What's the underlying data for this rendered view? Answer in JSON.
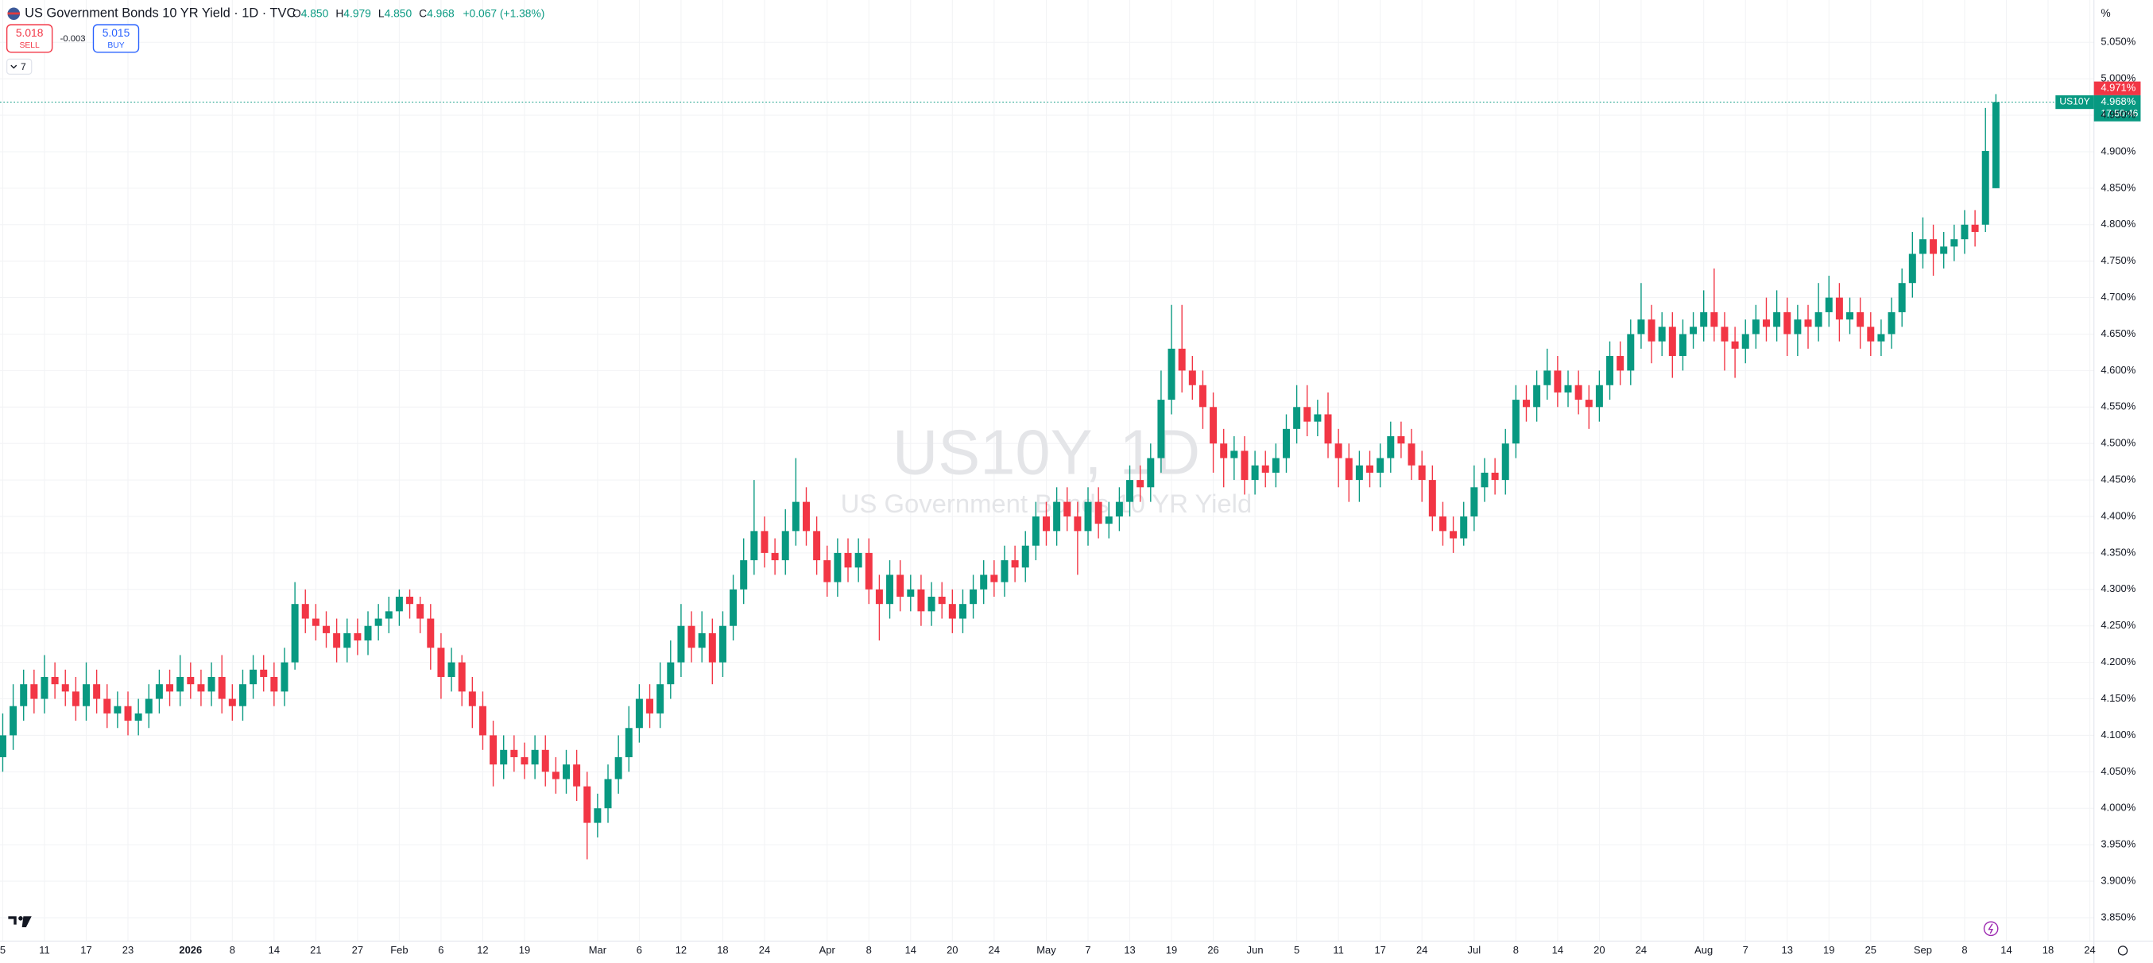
{
  "header": {
    "symbol_title": "US Government Bonds 10 YR Yield · 1D · TVC",
    "ohlc": [
      {
        "label": "O",
        "value": "4.850"
      },
      {
        "label": "H",
        "value": "4.979"
      },
      {
        "label": "L",
        "value": "4.850"
      },
      {
        "label": "C",
        "value": "4.968"
      }
    ],
    "change": "+0.067 (+1.38%)",
    "sell_price": "5.018",
    "sell_label": "SELL",
    "spread": "-0.003",
    "buy_price": "5.015",
    "buy_label": "BUY",
    "indicators_count": "7"
  },
  "chart_data": {
    "type": "candlestick",
    "watermark_symbol": "US10Y, 1D",
    "watermark_name": "US Government Bonds 10 YR Yield",
    "y_unit": "%",
    "price_tag": {
      "symbol": "US10Y",
      "ask": "4.971%",
      "last": "4.968%",
      "countdown": "17:50:46"
    },
    "up_color": "#089981",
    "down_color": "#f23645",
    "grid": true,
    "ylim": [
      3.818,
      5.108
    ],
    "yticks": [
      {
        "value": 3.85,
        "label": "3.850%"
      },
      {
        "value": 3.9,
        "label": "3.900%"
      },
      {
        "value": 3.95,
        "label": "3.950%"
      },
      {
        "value": 4.0,
        "label": "4.000%"
      },
      {
        "value": 4.05,
        "label": "4.050%"
      },
      {
        "value": 4.1,
        "label": "4.100%"
      },
      {
        "value": 4.15,
        "label": "4.150%"
      },
      {
        "value": 4.2,
        "label": "4.200%"
      },
      {
        "value": 4.25,
        "label": "4.250%"
      },
      {
        "value": 4.3,
        "label": "4.300%"
      },
      {
        "value": 4.35,
        "label": "4.350%"
      },
      {
        "value": 4.4,
        "label": "4.400%"
      },
      {
        "value": 4.45,
        "label": "4.450%"
      },
      {
        "value": 4.5,
        "label": "4.500%"
      },
      {
        "value": 4.55,
        "label": "4.550%"
      },
      {
        "value": 4.6,
        "label": "4.600%"
      },
      {
        "value": 4.65,
        "label": "4.650%"
      },
      {
        "value": 4.7,
        "label": "4.700%"
      },
      {
        "value": 4.75,
        "label": "4.750%"
      },
      {
        "value": 4.8,
        "label": "4.800%"
      },
      {
        "value": 4.85,
        "label": "4.850%"
      },
      {
        "value": 4.9,
        "label": "4.900%"
      },
      {
        "value": 4.95,
        "label": "4.950%"
      },
      {
        "value": 5.0,
        "label": "5.000%"
      },
      {
        "value": 5.05,
        "label": "5.050%"
      }
    ],
    "categories": [
      "5",
      null,
      null,
      null,
      "11",
      null,
      null,
      null,
      "17",
      null,
      null,
      null,
      "23",
      null,
      null,
      null,
      null,
      null,
      "2026",
      null,
      null,
      null,
      "8",
      null,
      null,
      null,
      "14",
      null,
      null,
      null,
      "21",
      null,
      null,
      null,
      "27",
      null,
      null,
      null,
      "Feb",
      null,
      null,
      null,
      "6",
      null,
      null,
      null,
      "12",
      null,
      null,
      null,
      "19",
      null,
      null,
      null,
      null,
      null,
      null,
      "Mar",
      null,
      null,
      null,
      "6",
      null,
      null,
      null,
      "12",
      null,
      null,
      null,
      "18",
      null,
      null,
      null,
      "24",
      null,
      null,
      null,
      null,
      null,
      "Apr",
      null,
      null,
      null,
      "8",
      null,
      null,
      null,
      "14",
      null,
      null,
      null,
      "20",
      null,
      null,
      null,
      "24",
      null,
      null,
      null,
      null,
      "May",
      null,
      null,
      null,
      "7",
      null,
      null,
      null,
      "13",
      null,
      null,
      null,
      "19",
      null,
      null,
      null,
      "26",
      null,
      null,
      null,
      "Jun",
      null,
      null,
      null,
      "5",
      null,
      null,
      null,
      "11",
      null,
      null,
      null,
      "17",
      null,
      null,
      null,
      "24",
      null,
      null,
      null,
      null,
      "Jul",
      null,
      null,
      null,
      "8",
      null,
      null,
      null,
      "14",
      null,
      null,
      null,
      "20",
      null,
      null,
      null,
      "24",
      null,
      null,
      null,
      null,
      null,
      "Aug",
      null,
      null,
      null,
      "7",
      null,
      null,
      null,
      "13",
      null,
      null,
      null,
      "19",
      null,
      null,
      null,
      "25",
      null,
      null,
      null,
      null,
      "Sep",
      null,
      null,
      null,
      "8",
      null,
      null,
      null,
      "14",
      null,
      null,
      null,
      "18",
      null,
      null,
      null,
      "24"
    ],
    "open": [
      4.07,
      4.1,
      4.14,
      4.17,
      4.15,
      4.18,
      4.17,
      4.16,
      4.14,
      4.17,
      4.15,
      4.13,
      4.14,
      4.12,
      4.13,
      4.15,
      4.17,
      4.16,
      4.18,
      4.17,
      4.16,
      4.18,
      4.15,
      4.14,
      4.17,
      4.19,
      4.18,
      4.16,
      4.2,
      4.28,
      4.26,
      4.25,
      4.24,
      4.22,
      4.24,
      4.23,
      4.25,
      4.26,
      4.27,
      4.29,
      4.28,
      4.26,
      4.22,
      4.18,
      4.2,
      4.16,
      4.14,
      4.1,
      4.06,
      4.08,
      4.07,
      4.06,
      4.08,
      4.05,
      4.04,
      4.06,
      4.03,
      3.98,
      4.0,
      4.04,
      4.07,
      4.11,
      4.15,
      4.13,
      4.17,
      4.2,
      4.25,
      4.22,
      4.24,
      4.2,
      4.25,
      4.3,
      4.34,
      4.38,
      4.35,
      4.34,
      4.38,
      4.42,
      4.38,
      4.34,
      4.31,
      4.35,
      4.33,
      4.35,
      4.3,
      4.28,
      4.32,
      4.29,
      4.3,
      4.27,
      4.29,
      4.28,
      4.26,
      4.28,
      4.3,
      4.32,
      4.31,
      4.34,
      4.33,
      4.36,
      4.4,
      4.38,
      4.42,
      4.4,
      4.38,
      4.42,
      4.39,
      4.4,
      4.42,
      4.45,
      4.44,
      4.48,
      4.56,
      4.63,
      4.6,
      4.58,
      4.55,
      4.5,
      4.48,
      4.49,
      4.45,
      4.47,
      4.46,
      4.48,
      4.52,
      4.55,
      4.53,
      4.54,
      4.5,
      4.48,
      4.45,
      4.47,
      4.46,
      4.48,
      4.51,
      4.5,
      4.47,
      4.45,
      4.4,
      4.38,
      4.37,
      4.4,
      4.44,
      4.46,
      4.45,
      4.5,
      4.56,
      4.55,
      4.58,
      4.6,
      4.57,
      4.58,
      4.56,
      4.55,
      4.58,
      4.62,
      4.6,
      4.65,
      4.67,
      4.64,
      4.66,
      4.62,
      4.65,
      4.66,
      4.68,
      4.66,
      4.64,
      4.63,
      4.65,
      4.67,
      4.66,
      4.68,
      4.65,
      4.67,
      4.66,
      4.68,
      4.7,
      4.67,
      4.68,
      4.66,
      4.64,
      4.65,
      4.68,
      4.72,
      4.76,
      4.78,
      4.76,
      4.77,
      4.78,
      4.8,
      4.8,
      4.85,
      null,
      null,
      null,
      null,
      null,
      null,
      null,
      null,
      null
    ],
    "high": [
      4.13,
      4.17,
      4.19,
      4.19,
      4.21,
      4.2,
      4.19,
      4.18,
      4.2,
      4.19,
      4.17,
      4.16,
      4.16,
      4.15,
      4.17,
      4.19,
      4.19,
      4.21,
      4.2,
      4.19,
      4.2,
      4.21,
      4.17,
      4.19,
      4.21,
      4.21,
      4.2,
      4.22,
      4.31,
      4.3,
      4.28,
      4.27,
      4.26,
      4.26,
      4.26,
      4.27,
      4.28,
      4.29,
      4.3,
      4.3,
      4.29,
      4.28,
      4.24,
      4.22,
      4.21,
      4.18,
      4.16,
      4.12,
      4.1,
      4.1,
      4.09,
      4.1,
      4.1,
      4.07,
      4.08,
      4.08,
      4.05,
      4.02,
      4.06,
      4.1,
      4.14,
      4.17,
      4.17,
      4.2,
      4.23,
      4.28,
      4.27,
      4.27,
      4.26,
      4.27,
      4.32,
      4.37,
      4.45,
      4.4,
      4.37,
      4.41,
      4.48,
      4.44,
      4.4,
      4.36,
      4.37,
      4.37,
      4.37,
      4.37,
      4.32,
      4.34,
      4.34,
      4.32,
      4.32,
      4.31,
      4.31,
      4.3,
      4.3,
      4.32,
      4.34,
      4.34,
      4.36,
      4.36,
      4.38,
      4.42,
      4.42,
      4.44,
      4.44,
      4.42,
      4.44,
      4.44,
      4.42,
      4.44,
      4.47,
      4.47,
      4.5,
      4.6,
      4.69,
      4.69,
      4.62,
      4.6,
      4.57,
      4.52,
      4.51,
      4.51,
      4.49,
      4.49,
      4.5,
      4.54,
      4.58,
      4.58,
      4.56,
      4.57,
      4.52,
      4.5,
      4.49,
      4.49,
      4.5,
      4.53,
      4.53,
      4.52,
      4.49,
      4.47,
      4.42,
      4.4,
      4.42,
      4.47,
      4.48,
      4.48,
      4.52,
      4.58,
      4.58,
      4.6,
      4.63,
      4.62,
      4.6,
      4.6,
      4.58,
      4.6,
      4.64,
      4.64,
      4.67,
      4.72,
      4.69,
      4.68,
      4.68,
      4.67,
      4.68,
      4.71,
      4.74,
      4.68,
      4.66,
      4.67,
      4.69,
      4.7,
      4.71,
      4.7,
      4.69,
      4.69,
      4.72,
      4.73,
      4.72,
      4.7,
      4.7,
      4.68,
      4.67,
      4.7,
      4.74,
      4.79,
      4.81,
      4.8,
      4.79,
      4.8,
      4.82,
      4.82,
      4.96,
      4.979,
      null,
      null,
      null,
      null,
      null,
      null,
      null,
      null,
      null
    ],
    "low": [
      4.05,
      4.08,
      4.12,
      4.13,
      4.13,
      4.15,
      4.14,
      4.12,
      4.12,
      4.13,
      4.11,
      4.11,
      4.1,
      4.1,
      4.11,
      4.13,
      4.14,
      4.14,
      4.15,
      4.14,
      4.14,
      4.13,
      4.12,
      4.12,
      4.15,
      4.16,
      4.14,
      4.14,
      4.19,
      4.24,
      4.23,
      4.22,
      4.2,
      4.2,
      4.21,
      4.21,
      4.23,
      4.24,
      4.25,
      4.26,
      4.24,
      4.19,
      4.15,
      4.16,
      4.14,
      4.11,
      4.08,
      4.03,
      4.04,
      4.05,
      4.04,
      4.04,
      4.03,
      4.02,
      4.02,
      4.01,
      3.93,
      3.96,
      3.98,
      4.02,
      4.05,
      4.09,
      4.11,
      4.11,
      4.15,
      4.18,
      4.2,
      4.2,
      4.17,
      4.18,
      4.23,
      4.28,
      4.32,
      4.33,
      4.32,
      4.32,
      4.36,
      4.36,
      4.32,
      4.29,
      4.29,
      4.31,
      4.31,
      4.28,
      4.23,
      4.26,
      4.27,
      4.27,
      4.25,
      4.25,
      4.26,
      4.24,
      4.24,
      4.26,
      4.28,
      4.29,
      4.29,
      4.31,
      4.31,
      4.34,
      4.36,
      4.36,
      4.38,
      4.32,
      4.36,
      4.37,
      4.37,
      4.38,
      4.4,
      4.42,
      4.42,
      4.46,
      4.54,
      4.57,
      4.56,
      4.52,
      4.46,
      4.44,
      4.45,
      4.43,
      4.43,
      4.44,
      4.44,
      4.46,
      4.5,
      4.51,
      4.51,
      4.48,
      4.44,
      4.42,
      4.42,
      4.44,
      4.44,
      4.46,
      4.48,
      4.45,
      4.42,
      4.38,
      4.36,
      4.35,
      4.36,
      4.38,
      4.42,
      4.43,
      4.43,
      4.48,
      4.53,
      4.53,
      4.56,
      4.55,
      4.55,
      4.54,
      4.52,
      4.53,
      4.56,
      4.58,
      4.58,
      4.63,
      4.61,
      4.62,
      4.59,
      4.6,
      4.63,
      4.64,
      4.64,
      4.6,
      4.59,
      4.61,
      4.63,
      4.64,
      4.64,
      4.62,
      4.62,
      4.63,
      4.64,
      4.66,
      4.64,
      4.65,
      4.63,
      4.62,
      4.62,
      4.63,
      4.66,
      4.7,
      4.74,
      4.73,
      4.74,
      4.75,
      4.76,
      4.77,
      4.79,
      4.85,
      null,
      null,
      null,
      null,
      null,
      null,
      null,
      null,
      null
    ],
    "close": [
      4.1,
      4.14,
      4.17,
      4.15,
      4.18,
      4.17,
      4.16,
      4.14,
      4.17,
      4.15,
      4.13,
      4.14,
      4.12,
      4.13,
      4.15,
      4.17,
      4.16,
      4.18,
      4.17,
      4.16,
      4.18,
      4.15,
      4.14,
      4.17,
      4.19,
      4.18,
      4.16,
      4.2,
      4.28,
      4.26,
      4.25,
      4.24,
      4.22,
      4.24,
      4.23,
      4.25,
      4.26,
      4.27,
      4.29,
      4.28,
      4.26,
      4.22,
      4.18,
      4.2,
      4.16,
      4.14,
      4.1,
      4.06,
      4.08,
      4.07,
      4.06,
      4.08,
      4.05,
      4.04,
      4.06,
      4.03,
      3.98,
      4.0,
      4.04,
      4.07,
      4.11,
      4.15,
      4.13,
      4.17,
      4.2,
      4.25,
      4.22,
      4.24,
      4.2,
      4.25,
      4.3,
      4.34,
      4.38,
      4.35,
      4.34,
      4.38,
      4.42,
      4.38,
      4.34,
      4.31,
      4.35,
      4.33,
      4.35,
      4.3,
      4.28,
      4.32,
      4.29,
      4.3,
      4.27,
      4.29,
      4.28,
      4.26,
      4.28,
      4.3,
      4.32,
      4.31,
      4.34,
      4.33,
      4.36,
      4.4,
      4.38,
      4.42,
      4.4,
      4.38,
      4.42,
      4.39,
      4.4,
      4.42,
      4.45,
      4.44,
      4.48,
      4.56,
      4.63,
      4.6,
      4.58,
      4.55,
      4.5,
      4.48,
      4.49,
      4.45,
      4.47,
      4.46,
      4.48,
      4.52,
      4.55,
      4.53,
      4.54,
      4.5,
      4.48,
      4.45,
      4.47,
      4.46,
      4.48,
      4.51,
      4.5,
      4.47,
      4.45,
      4.4,
      4.38,
      4.37,
      4.4,
      4.44,
      4.46,
      4.45,
      4.5,
      4.56,
      4.55,
      4.58,
      4.6,
      4.57,
      4.58,
      4.56,
      4.55,
      4.58,
      4.62,
      4.6,
      4.65,
      4.67,
      4.64,
      4.66,
      4.62,
      4.65,
      4.66,
      4.68,
      4.66,
      4.64,
      4.63,
      4.65,
      4.67,
      4.66,
      4.68,
      4.65,
      4.67,
      4.66,
      4.68,
      4.7,
      4.67,
      4.68,
      4.66,
      4.64,
      4.65,
      4.68,
      4.72,
      4.76,
      4.78,
      4.76,
      4.77,
      4.78,
      4.8,
      4.79,
      4.901,
      4.968,
      null,
      null,
      null,
      null,
      null,
      null,
      null,
      null,
      null
    ]
  }
}
